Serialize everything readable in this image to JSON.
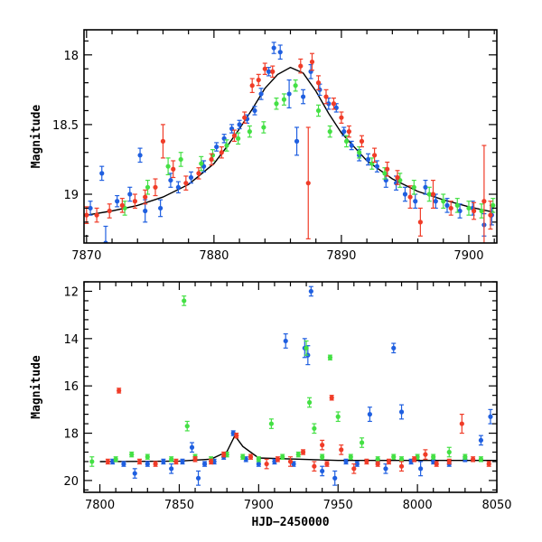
{
  "chart_data": [
    {
      "type": "scatter",
      "title": "",
      "xlabel": "",
      "ylabel": "Magnitude",
      "xlim": [
        7869.8,
        7902.2
      ],
      "ylim": [
        19.35,
        17.82
      ],
      "y_inverted": true,
      "x_ticks": [
        7870,
        7880,
        7890,
        7900
      ],
      "y_ticks": [
        18,
        18.5,
        19
      ],
      "colors": {
        "blue": "#1f5fe0",
        "green": "#44e044",
        "red": "#f03c28",
        "model": "#000000"
      },
      "model_curve": {
        "name": "",
        "x": [
          7870,
          7872,
          7874,
          7876,
          7878,
          7880,
          7881,
          7882,
          7883,
          7884,
          7885,
          7886,
          7887,
          7888,
          7889,
          7890,
          7892,
          7894,
          7896,
          7898,
          7900,
          7902
        ],
        "y": [
          19.15,
          19.12,
          19.08,
          19.02,
          18.93,
          18.78,
          18.66,
          18.53,
          18.39,
          18.24,
          18.14,
          18.09,
          18.13,
          18.26,
          18.42,
          18.56,
          18.76,
          18.89,
          18.98,
          19.04,
          19.09,
          19.13
        ]
      },
      "series": [
        {
          "color": "blue",
          "x": [
            7870.3,
            7871.2,
            7871.5,
            7872.4,
            7873.4,
            7874.2,
            7874.6,
            7875.8,
            7876.6,
            7877.2,
            7878.2,
            7879.2,
            7880.2,
            7880.8,
            7881.4,
            7882.0,
            7882.6,
            7883.2,
            7883.7,
            7884.3,
            7884.7,
            7885.2,
            7885.9,
            7886.5,
            7887.0,
            7887.6,
            7888.3,
            7889.0,
            7889.6,
            7890.2,
            7890.8,
            7891.4,
            7892.1,
            7892.8,
            7893.5,
            7894.3,
            7895.0,
            7895.8,
            7896.6,
            7897.4,
            7898.3,
            7899.3,
            7900.3,
            7901.2,
            7901.8
          ],
          "y": [
            19.1,
            18.85,
            19.35,
            19.05,
            19.0,
            18.72,
            19.12,
            19.1,
            18.9,
            18.95,
            18.88,
            18.8,
            18.66,
            18.6,
            18.53,
            18.5,
            18.46,
            18.4,
            18.28,
            18.12,
            17.95,
            17.98,
            18.28,
            18.62,
            18.3,
            18.12,
            18.25,
            18.35,
            18.38,
            18.55,
            18.65,
            18.72,
            18.75,
            18.8,
            18.9,
            18.92,
            19.0,
            19.05,
            18.95,
            19.05,
            19.08,
            19.12,
            19.1,
            19.22,
            19.15
          ],
          "err": [
            0.05,
            0.05,
            0.12,
            0.04,
            0.05,
            0.05,
            0.08,
            0.06,
            0.05,
            0.04,
            0.04,
            0.04,
            0.03,
            0.03,
            0.03,
            0.03,
            0.03,
            0.03,
            0.04,
            0.03,
            0.04,
            0.05,
            0.1,
            0.1,
            0.05,
            0.05,
            0.04,
            0.04,
            0.03,
            0.03,
            0.03,
            0.04,
            0.04,
            0.04,
            0.05,
            0.05,
            0.05,
            0.05,
            0.05,
            0.05,
            0.05,
            0.05,
            0.05,
            0.08,
            0.07
          ]
        },
        {
          "color": "green",
          "x": [
            7873.0,
            7874.8,
            7876.4,
            7877.4,
            7879.0,
            7879.9,
            7881.0,
            7881.9,
            7882.8,
            7883.9,
            7884.9,
            7885.5,
            7886.4,
            7888.2,
            7889.1,
            7890.4,
            7891.4,
            7892.4,
            7893.4,
            7894.6,
            7895.7,
            7896.9,
            7898.0,
            7899.1,
            7900.0,
            7901.0,
            7901.9
          ],
          "y": [
            19.1,
            18.95,
            18.8,
            18.75,
            18.78,
            18.72,
            18.65,
            18.6,
            18.55,
            18.52,
            18.35,
            18.32,
            18.22,
            18.4,
            18.55,
            18.62,
            18.7,
            18.78,
            18.85,
            18.9,
            18.95,
            19.0,
            19.05,
            19.08,
            19.1,
            19.12,
            19.08
          ],
          "err": [
            0.05,
            0.05,
            0.06,
            0.05,
            0.05,
            0.04,
            0.04,
            0.04,
            0.04,
            0.04,
            0.04,
            0.04,
            0.04,
            0.04,
            0.04,
            0.04,
            0.04,
            0.04,
            0.04,
            0.05,
            0.05,
            0.05,
            0.05,
            0.05,
            0.05,
            0.05,
            0.05
          ]
        },
        {
          "color": "red",
          "x": [
            7870.0,
            7870.8,
            7871.8,
            7872.8,
            7873.8,
            7874.6,
            7875.4,
            7876.0,
            7876.8,
            7877.8,
            7878.8,
            7879.8,
            7880.6,
            7881.6,
            7882.4,
            7883.0,
            7883.5,
            7884.0,
            7884.6,
            7886.8,
            7887.4,
            7887.7,
            7888.2,
            7888.8,
            7889.4,
            7890.0,
            7890.6,
            7891.6,
            7892.6,
            7893.6,
            7894.4,
            7895.4,
            7896.2,
            7897.2,
            7898.6,
            7900.4,
            7901.2,
            7901.7
          ],
          "y": [
            19.15,
            19.15,
            19.12,
            19.08,
            19.05,
            19.02,
            18.95,
            18.62,
            18.82,
            18.92,
            18.85,
            18.75,
            18.7,
            18.58,
            18.45,
            18.22,
            18.18,
            18.1,
            18.12,
            18.08,
            18.92,
            18.05,
            18.2,
            18.3,
            18.35,
            18.45,
            18.55,
            18.62,
            18.72,
            18.82,
            18.88,
            19.02,
            19.2,
            19.0,
            19.1,
            19.12,
            19.05,
            19.15
          ],
          "err": [
            0.06,
            0.05,
            0.05,
            0.05,
            0.05,
            0.05,
            0.06,
            0.12,
            0.06,
            0.05,
            0.04,
            0.04,
            0.04,
            0.04,
            0.04,
            0.05,
            0.04,
            0.04,
            0.04,
            0.05,
            0.4,
            0.06,
            0.05,
            0.05,
            0.04,
            0.04,
            0.04,
            0.04,
            0.05,
            0.05,
            0.05,
            0.08,
            0.1,
            0.1,
            0.05,
            0.06,
            0.4,
            0.1
          ]
        }
      ]
    },
    {
      "type": "scatter",
      "title": "",
      "xlabel": "HJD−2450000",
      "ylabel": "Magnitude",
      "xlim": [
        7790,
        8050
      ],
      "ylim": [
        20.5,
        11.6
      ],
      "y_inverted": true,
      "x_ticks": [
        7800,
        7850,
        7900,
        7950,
        8000,
        8050
      ],
      "y_ticks": [
        12,
        14,
        16,
        18,
        20
      ],
      "model_curve": {
        "name": "",
        "x": [
          7800,
          7850,
          7870,
          7880,
          7885,
          7890,
          7900,
          7950,
          8000,
          8050
        ],
        "y": [
          19.2,
          19.18,
          19.1,
          18.78,
          18.1,
          18.56,
          19.05,
          19.15,
          19.15,
          19.15
        ]
      },
      "series": [
        {
          "color": "blue",
          "x": [
            7808,
            7815,
            7822,
            7830,
            7840,
            7845,
            7852,
            7858,
            7862,
            7866,
            7872,
            7878,
            7884,
            7892,
            7900,
            7910,
            7917,
            7922,
            7929,
            7931,
            7933,
            7940,
            7948,
            7955,
            7962,
            7970,
            7975,
            7980,
            7985,
            7990,
            7996,
            8002,
            8010,
            8020,
            8030,
            8040,
            8046
          ],
          "y": [
            19.2,
            19.3,
            19.7,
            19.3,
            19.2,
            19.5,
            19.2,
            18.6,
            19.9,
            19.3,
            19.2,
            19.0,
            18.0,
            19.1,
            19.3,
            19.2,
            14.1,
            19.3,
            14.4,
            14.7,
            12.0,
            19.6,
            19.9,
            19.2,
            19.3,
            17.2,
            19.2,
            19.5,
            14.4,
            17.1,
            19.2,
            19.5,
            19.2,
            19.3,
            19.1,
            18.3,
            17.3
          ],
          "err": [
            0.1,
            0.1,
            0.2,
            0.1,
            0.1,
            0.2,
            0.1,
            0.2,
            0.3,
            0.1,
            0.1,
            0.1,
            0.1,
            0.1,
            0.1,
            0.1,
            0.3,
            0.1,
            0.4,
            0.4,
            0.2,
            0.2,
            0.3,
            0.1,
            0.1,
            0.3,
            0.1,
            0.2,
            0.2,
            0.3,
            0.1,
            0.3,
            0.1,
            0.1,
            0.1,
            0.2,
            0.3
          ]
        },
        {
          "color": "green",
          "x": [
            7795,
            7810,
            7820,
            7830,
            7845,
            7853,
            7855,
            7860,
            7870,
            7880,
            7890,
            7900,
            7908,
            7915,
            7925,
            7930,
            7932,
            7935,
            7940,
            7945,
            7950,
            7958,
            7965,
            7975,
            7985,
            7990,
            8000,
            8010,
            8020,
            8030,
            8040
          ],
          "y": [
            19.2,
            19.1,
            18.9,
            19.0,
            19.1,
            12.4,
            17.7,
            19.0,
            19.1,
            18.9,
            19.0,
            19.1,
            17.6,
            19.0,
            18.9,
            14.4,
            16.7,
            17.8,
            19.0,
            14.8,
            17.3,
            19.0,
            18.4,
            19.1,
            19.0,
            19.1,
            19.0,
            19.0,
            18.8,
            19.0,
            19.1
          ],
          "err": [
            0.2,
            0.1,
            0.1,
            0.1,
            0.1,
            0.2,
            0.2,
            0.1,
            0.1,
            0.1,
            0.1,
            0.1,
            0.2,
            0.1,
            0.1,
            0.3,
            0.2,
            0.2,
            0.1,
            0.1,
            0.2,
            0.1,
            0.2,
            0.1,
            0.1,
            0.1,
            0.1,
            0.1,
            0.2,
            0.1,
            0.1
          ]
        },
        {
          "color": "red",
          "x": [
            7805,
            7812,
            7825,
            7835,
            7848,
            7860,
            7870,
            7878,
            7886,
            7895,
            7905,
            7912,
            7920,
            7928,
            7935,
            7940,
            7943,
            7946,
            7952,
            7960,
            7968,
            7975,
            7982,
            7990,
            7998,
            8005,
            8012,
            8020,
            8028,
            8035,
            8045
          ],
          "y": [
            19.2,
            16.2,
            19.2,
            19.3,
            19.2,
            19.1,
            19.2,
            18.9,
            18.1,
            19.0,
            19.3,
            19.1,
            19.2,
            18.8,
            19.4,
            18.5,
            19.3,
            16.5,
            18.7,
            19.5,
            19.2,
            19.3,
            19.2,
            19.4,
            19.1,
            18.9,
            19.3,
            19.2,
            17.6,
            19.1,
            19.3
          ],
          "err": [
            0.1,
            0.1,
            0.1,
            0.1,
            0.1,
            0.1,
            0.1,
            0.1,
            0.1,
            0.1,
            0.2,
            0.1,
            0.2,
            0.1,
            0.2,
            0.2,
            0.1,
            0.1,
            0.2,
            0.2,
            0.1,
            0.1,
            0.1,
            0.2,
            0.1,
            0.2,
            0.1,
            0.1,
            0.4,
            0.1,
            0.1
          ]
        }
      ]
    }
  ]
}
